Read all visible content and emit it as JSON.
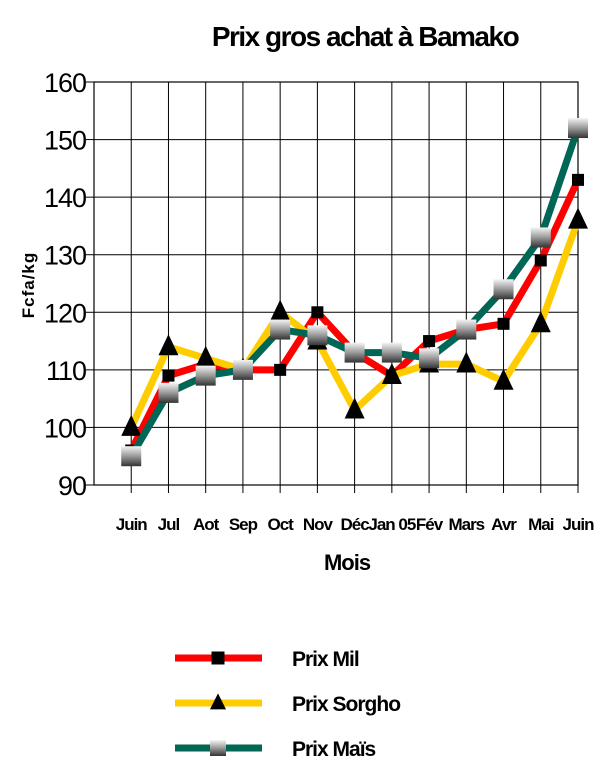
{
  "chart_data": {
    "type": "line",
    "title": "Prix  gros achat à Bamako",
    "xlabel": "Mois",
    "ylabel": "Fcfa/kg",
    "categories": [
      "Juin",
      "Jul",
      "Aot",
      "Sep",
      "Oct",
      "Nov",
      "Déc",
      "Jan 05",
      "Fév",
      "Mars",
      "Avr",
      "Mai",
      "Juin"
    ],
    "ylim": [
      90,
      160
    ],
    "yticks": [
      90,
      100,
      110,
      120,
      130,
      140,
      150,
      160
    ],
    "grid": true,
    "legend_position": "bottom",
    "series": [
      {
        "name": "Prix Mil",
        "color": "#ff0000",
        "marker": "square",
        "values": [
          96,
          109,
          111,
          110,
          110,
          120,
          113,
          109,
          115,
          117,
          118,
          129,
          143
        ]
      },
      {
        "name": "Prix Sorgho",
        "color": "#ffcc00",
        "marker": "triangle",
        "values": [
          100,
          114,
          112,
          110,
          120,
          115,
          103,
          109,
          111,
          111,
          108,
          118,
          136
        ]
      },
      {
        "name": "Prix Maïs",
        "color": "#006655",
        "marker": "gradient-square",
        "values": [
          95,
          106,
          109,
          110,
          117,
          116,
          113,
          113,
          112,
          117,
          124,
          133,
          152
        ]
      }
    ]
  }
}
